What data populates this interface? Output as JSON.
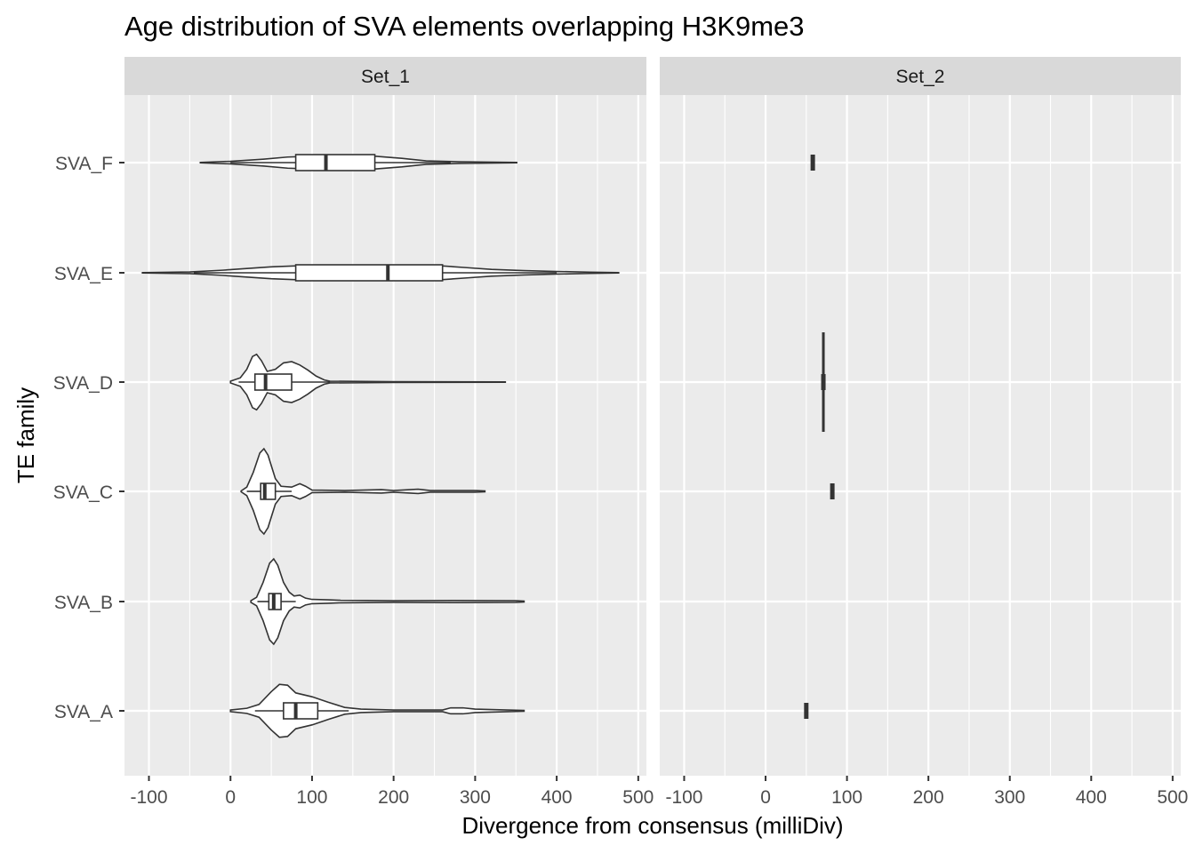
{
  "chart_data": {
    "type": "violin",
    "title": "Age distribution of SVA elements overlapping H3K9me3",
    "xlabel": "Divergence from consensus (milliDiv)",
    "ylabel": "TE family",
    "xlim": [
      -130,
      510
    ],
    "x_ticks": [
      -100,
      0,
      100,
      200,
      300,
      400,
      500
    ],
    "x_tick_labels": [
      "-100",
      "0",
      "100",
      "200",
      "300",
      "400",
      "500"
    ],
    "categories": [
      "SVA_A",
      "SVA_B",
      "SVA_C",
      "SVA_D",
      "SVA_E",
      "SVA_F"
    ],
    "grid": true,
    "legend": "none",
    "colors": {
      "panel_bg": "#ebebeb",
      "strip_bg": "#d9d9d9",
      "grid": "#ffffff",
      "outline": "#333333",
      "fill": "#ffffff"
    },
    "facets": [
      {
        "label": "Set_1",
        "series": [
          {
            "name": "SVA_A",
            "violin_range": [
              0,
              360
            ],
            "box": {
              "q1": 65,
              "median": 80,
              "q3": 107,
              "whisker_low": 30,
              "whisker_high": 145
            },
            "density": [
              [
                0,
                0.02
              ],
              [
                20,
                0.06
              ],
              [
                35,
                0.15
              ],
              [
                50,
                0.45
              ],
              [
                60,
                0.62
              ],
              [
                70,
                0.6
              ],
              [
                80,
                0.42
              ],
              [
                100,
                0.33
              ],
              [
                120,
                0.2
              ],
              [
                140,
                0.08
              ],
              [
                160,
                0.04
              ],
              [
                180,
                0.03
              ],
              [
                200,
                0.02
              ],
              [
                260,
                0.02
              ],
              [
                270,
                0.07
              ],
              [
                285,
                0.07
              ],
              [
                300,
                0.04
              ],
              [
                340,
                0.02
              ],
              [
                360,
                0.01
              ]
            ]
          },
          {
            "name": "SVA_B",
            "violin_range": [
              25,
              360
            ],
            "box": {
              "q1": 47,
              "median": 53,
              "q3": 62,
              "whisker_low": 33,
              "whisker_high": 80
            },
            "density": [
              [
                25,
                0.02
              ],
              [
                32,
                0.1
              ],
              [
                40,
                0.45
              ],
              [
                48,
                0.9
              ],
              [
                53,
                1.0
              ],
              [
                58,
                0.85
              ],
              [
                65,
                0.45
              ],
              [
                72,
                0.22
              ],
              [
                78,
                0.13
              ],
              [
                85,
                0.15
              ],
              [
                92,
                0.08
              ],
              [
                100,
                0.05
              ],
              [
                120,
                0.04
              ],
              [
                135,
                0.03
              ],
              [
                200,
                0.02
              ],
              [
                275,
                0.025
              ],
              [
                350,
                0.02
              ],
              [
                360,
                0.01
              ]
            ]
          },
          {
            "name": "SVA_C",
            "violin_range": [
              13,
              312
            ],
            "box": {
              "q1": 37,
              "median": 42,
              "q3": 55,
              "whisker_low": 20,
              "whisker_high": 75
            },
            "density": [
              [
                13,
                0.01
              ],
              [
                20,
                0.1
              ],
              [
                28,
                0.45
              ],
              [
                36,
                0.9
              ],
              [
                41,
                1.0
              ],
              [
                46,
                0.85
              ],
              [
                55,
                0.3
              ],
              [
                62,
                0.12
              ],
              [
                75,
                0.1
              ],
              [
                85,
                0.18
              ],
              [
                92,
                0.12
              ],
              [
                100,
                0.03
              ],
              [
                140,
                0.02
              ],
              [
                185,
                0.04
              ],
              [
                200,
                0.02
              ],
              [
                230,
                0.05
              ],
              [
                245,
                0.02
              ],
              [
                300,
                0.02
              ],
              [
                312,
                0.01
              ]
            ]
          },
          {
            "name": "SVA_D",
            "violin_range": [
              0,
              337
            ],
            "box": {
              "q1": 30,
              "median": 43,
              "q3": 75,
              "whisker_low": 10,
              "whisker_high": 122
            },
            "density": [
              [
                0,
                0.02
              ],
              [
                12,
                0.1
              ],
              [
                20,
                0.3
              ],
              [
                27,
                0.6
              ],
              [
                32,
                0.65
              ],
              [
                38,
                0.5
              ],
              [
                45,
                0.25
              ],
              [
                55,
                0.3
              ],
              [
                65,
                0.45
              ],
              [
                75,
                0.48
              ],
              [
                85,
                0.4
              ],
              [
                95,
                0.28
              ],
              [
                105,
                0.14
              ],
              [
                115,
                0.05
              ],
              [
                122,
                0.02
              ],
              [
                200,
                0.01
              ],
              [
                337,
                0.005
              ]
            ]
          },
          {
            "name": "SVA_E",
            "violin_range": [
              -108,
              476
            ],
            "box": {
              "q1": 80,
              "median": 193,
              "q3": 260,
              "whisker_low": -45,
              "whisker_high": 400
            },
            "density": [
              [
                -108,
                0.005
              ],
              [
                -50,
                0.02
              ],
              [
                -10,
                0.06
              ],
              [
                20,
                0.1
              ],
              [
                50,
                0.14
              ],
              [
                78,
                0.16
              ],
              [
                100,
                0.17
              ],
              [
                150,
                0.18
              ],
              [
                200,
                0.17
              ],
              [
                260,
                0.16
              ],
              [
                290,
                0.12
              ],
              [
                320,
                0.08
              ],
              [
                360,
                0.05
              ],
              [
                400,
                0.03
              ],
              [
                440,
                0.015
              ],
              [
                476,
                0.005
              ]
            ]
          },
          {
            "name": "SVA_F",
            "violin_range": [
              -37,
              351
            ],
            "box": {
              "q1": 80,
              "median": 117,
              "q3": 177,
              "whisker_low": 0,
              "whisker_high": 270
            },
            "density": [
              [
                -37,
                0.005
              ],
              [
                0,
                0.03
              ],
              [
                40,
                0.08
              ],
              [
                70,
                0.13
              ],
              [
                100,
                0.15
              ],
              [
                140,
                0.16
              ],
              [
                177,
                0.15
              ],
              [
                210,
                0.1
              ],
              [
                240,
                0.04
              ],
              [
                280,
                0.02
              ],
              [
                351,
                0.005
              ]
            ]
          }
        ]
      },
      {
        "label": "Set_2",
        "series": [
          {
            "name": "SVA_A",
            "violin_range": [
              50,
              50
            ],
            "box": {
              "q1": 49,
              "median": 50,
              "q3": 51,
              "whisker_low": 50,
              "whisker_high": 50
            },
            "density": []
          },
          {
            "name": "SVA_B",
            "violin_range": [
              null,
              null
            ],
            "box": null,
            "density": []
          },
          {
            "name": "SVA_C",
            "violin_range": [
              82,
              82
            ],
            "box": {
              "q1": 81,
              "median": 82,
              "q3": 83,
              "whisker_low": 82,
              "whisker_high": 82
            },
            "density": []
          },
          {
            "name": "SVA_D",
            "violin_range": [
              71,
              71
            ],
            "box": {
              "q1": 70,
              "median": 71,
              "q3": 72,
              "whisker_low": 71,
              "whisker_high": 71
            },
            "density": [],
            "whisker_extent": "tall"
          },
          {
            "name": "SVA_E",
            "violin_range": [
              null,
              null
            ],
            "box": null,
            "density": []
          },
          {
            "name": "SVA_F",
            "violin_range": [
              58,
              58
            ],
            "box": {
              "q1": 57,
              "median": 58,
              "q3": 59,
              "whisker_low": 58,
              "whisker_high": 58
            },
            "density": []
          }
        ]
      }
    ]
  }
}
